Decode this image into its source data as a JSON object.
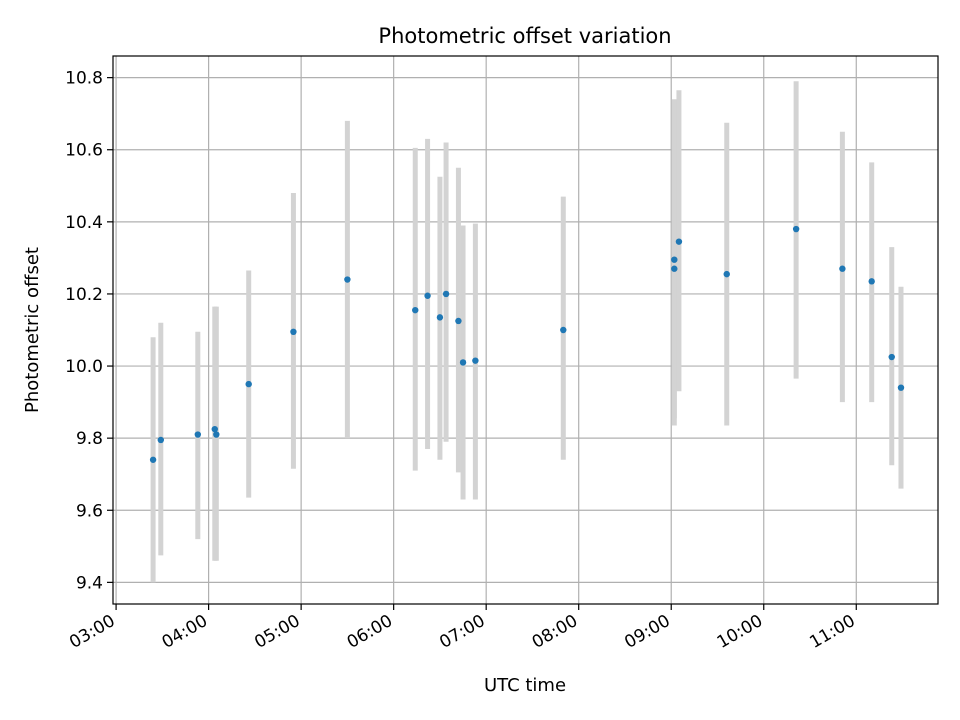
{
  "chart_data": {
    "type": "scatter",
    "title": "Photometric offset variation",
    "xlabel": "UTC time",
    "ylabel": "Photometric offset",
    "x_tick_labels": [
      "03:00",
      "04:00",
      "05:00",
      "06:00",
      "07:00",
      "08:00",
      "09:00",
      "10:00",
      "11:00"
    ],
    "xlim": [
      "02:58",
      "11:53"
    ],
    "y_tick_labels": [
      "9.4",
      "9.6",
      "9.8",
      "10.0",
      "10.2",
      "10.4",
      "10.6",
      "10.8"
    ],
    "ylim": [
      9.34,
      10.86
    ],
    "grid": true,
    "colors": {
      "point": "#1f77b4",
      "errorbar": "#d3d3d3",
      "grid": "#b0b0b0"
    },
    "points": [
      {
        "x": "03:24",
        "y": 9.74,
        "ylo": 9.4,
        "yhi": 10.08
      },
      {
        "x": "03:29",
        "y": 9.795,
        "ylo": 9.475,
        "yhi": 10.12
      },
      {
        "x": "03:53",
        "y": 9.81,
        "ylo": 9.52,
        "yhi": 10.095
      },
      {
        "x": "04:04",
        "y": 9.825,
        "ylo": 9.46,
        "yhi": 10.165
      },
      {
        "x": "04:05",
        "y": 9.81,
        "ylo": 9.46,
        "yhi": 10.165
      },
      {
        "x": "04:26",
        "y": 9.95,
        "ylo": 9.635,
        "yhi": 10.265
      },
      {
        "x": "04:55",
        "y": 10.095,
        "ylo": 9.715,
        "yhi": 10.48
      },
      {
        "x": "05:30",
        "y": 10.24,
        "ylo": 9.8,
        "yhi": 10.68
      },
      {
        "x": "06:14",
        "y": 10.155,
        "ylo": 9.71,
        "yhi": 10.605
      },
      {
        "x": "06:22",
        "y": 10.195,
        "ylo": 9.77,
        "yhi": 10.63
      },
      {
        "x": "06:30",
        "y": 10.135,
        "ylo": 9.74,
        "yhi": 10.525
      },
      {
        "x": "06:34",
        "y": 10.2,
        "ylo": 9.79,
        "yhi": 10.62
      },
      {
        "x": "06:42",
        "y": 10.125,
        "ylo": 9.705,
        "yhi": 10.55
      },
      {
        "x": "06:45",
        "y": 10.01,
        "ylo": 9.63,
        "yhi": 10.39
      },
      {
        "x": "06:53",
        "y": 10.015,
        "ylo": 9.63,
        "yhi": 10.395
      },
      {
        "x": "07:50",
        "y": 10.1,
        "ylo": 9.74,
        "yhi": 10.47
      },
      {
        "x": "09:02",
        "y": 10.295,
        "ylo": 9.855,
        "yhi": 10.74
      },
      {
        "x": "09:02",
        "y": 10.27,
        "ylo": 9.835,
        "yhi": 10.71
      },
      {
        "x": "09:05",
        "y": 10.345,
        "ylo": 9.93,
        "yhi": 10.765
      },
      {
        "x": "09:36",
        "y": 10.255,
        "ylo": 9.835,
        "yhi": 10.675
      },
      {
        "x": "10:21",
        "y": 10.38,
        "ylo": 9.965,
        "yhi": 10.79
      },
      {
        "x": "10:51",
        "y": 10.27,
        "ylo": 9.9,
        "yhi": 10.65
      },
      {
        "x": "11:10",
        "y": 10.235,
        "ylo": 9.9,
        "yhi": 10.565
      },
      {
        "x": "11:23",
        "y": 10.025,
        "ylo": 9.725,
        "yhi": 10.33
      },
      {
        "x": "11:29",
        "y": 9.94,
        "ylo": 9.66,
        "yhi": 10.22
      }
    ]
  }
}
